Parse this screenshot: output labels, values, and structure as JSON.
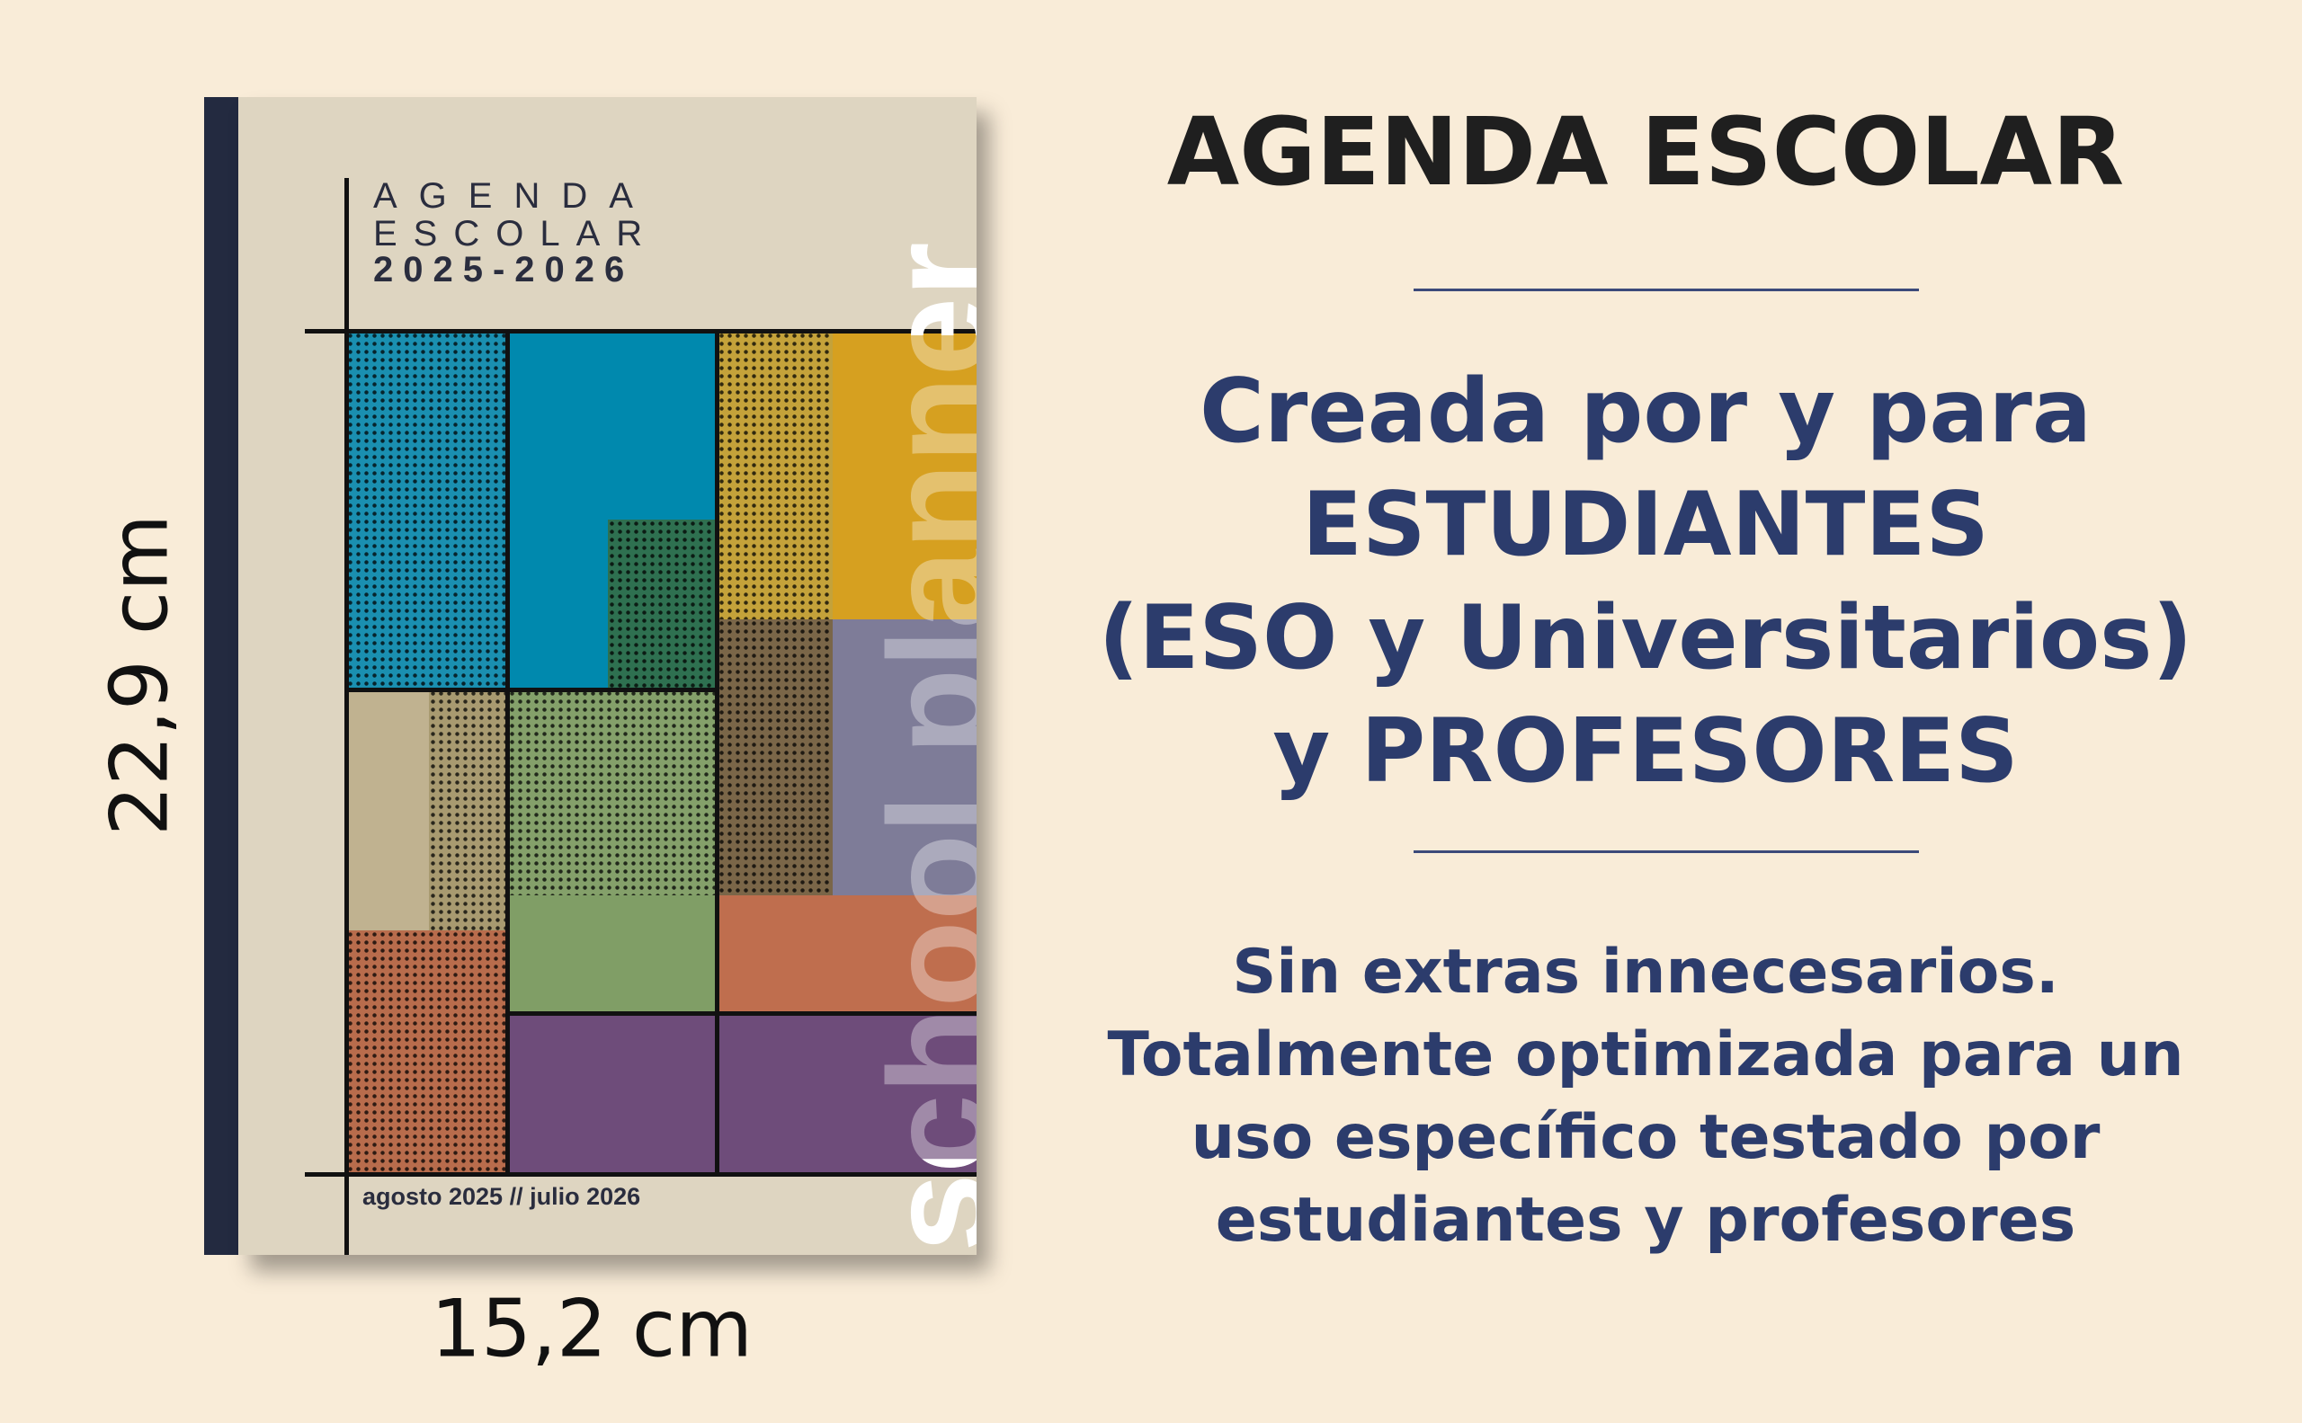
{
  "cover": {
    "title_line1": "AGENDA",
    "title_line2": "ESCOLAR",
    "years": "2025-2026",
    "dates": "agosto 2025 // julio 2026",
    "vertical_text": "school planner"
  },
  "dimensions": {
    "height": "22,9 cm",
    "width": "15,2 cm"
  },
  "headline": "AGENDA ESCOLAR",
  "tagline": [
    "Creada por y para",
    "ESTUDIANTES",
    "(ESO y Universitarios)",
    "y PROFESORES"
  ],
  "description": [
    "Sin extras innecesarios.",
    "Totalmente optimizada para un",
    "uso específico testado por",
    "estudiantes y profesores"
  ],
  "colors": {
    "background": "#f9ecd8",
    "text_navy": "#2c3c6c",
    "spine": "#232a40",
    "cover": "#ded5c1"
  }
}
